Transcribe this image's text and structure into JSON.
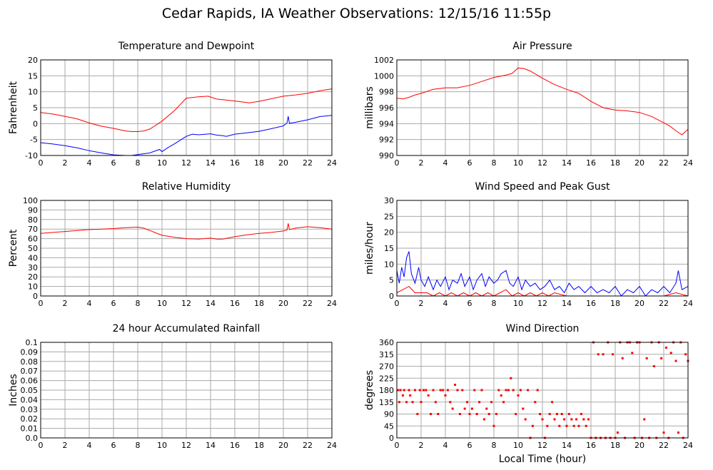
{
  "title": "Cedar Rapids, IA Weather Observations: 12/15/16 11:55p",
  "x_axis_label": "Local Time (hour)",
  "colors": {
    "primary": "#ff0000",
    "secondary": "#0000ff",
    "grid": "#aaaaaa",
    "frame": "#000000"
  },
  "chart_data": [
    {
      "id": "temp",
      "type": "line",
      "title": "Temperature and Dewpoint",
      "xlabel": "",
      "ylabel": "Fahrenheit",
      "xlim": [
        0,
        24
      ],
      "ylim": [
        -10,
        20
      ],
      "xticks": [
        0,
        2,
        4,
        6,
        8,
        10,
        12,
        14,
        16,
        18,
        20,
        22,
        24
      ],
      "yticks": [
        -10,
        -5,
        0,
        5,
        10,
        15,
        20
      ],
      "grid": true,
      "series": [
        {
          "color": "#ff0000",
          "x": [
            0,
            1,
            2,
            3,
            4,
            5,
            6,
            7,
            7.5,
            8,
            8.5,
            9,
            9.5,
            10,
            11,
            12,
            13,
            13.8,
            14.5,
            16,
            17.2,
            18,
            19,
            20,
            21,
            22,
            23,
            24
          ],
          "y": [
            3.5,
            3,
            2.3,
            1.5,
            0.2,
            -0.8,
            -1.5,
            -2.3,
            -2.5,
            -2.5,
            -2.3,
            -1.7,
            -0.5,
            0.8,
            4,
            8,
            8.4,
            8.6,
            7.7,
            7.1,
            6.5,
            7,
            7.8,
            8.6,
            9,
            9.5,
            10.3,
            10.9
          ]
        },
        {
          "color": "#0000ff",
          "x": [
            0,
            1,
            2,
            3,
            4,
            5,
            6,
            7,
            7.5,
            8,
            9,
            9.8,
            10,
            10.5,
            11,
            12,
            12.5,
            13,
            14,
            14.5,
            15,
            15.3,
            16,
            17,
            18,
            19,
            20,
            20.3,
            20.4,
            20.5,
            21,
            22,
            23,
            24
          ],
          "y": [
            -6,
            -6.4,
            -6.9,
            -7.6,
            -8.5,
            -9.2,
            -9.8,
            -10,
            -10,
            -9.7,
            -9.2,
            -8.1,
            -8.8,
            -7.5,
            -6.4,
            -4,
            -3.3,
            -3.5,
            -3.2,
            -3.6,
            -3.8,
            -4,
            -3.3,
            -2.9,
            -2.4,
            -1.6,
            -0.7,
            0.2,
            2.3,
            0.1,
            0.4,
            1.2,
            2.2,
            2.6
          ]
        }
      ]
    },
    {
      "id": "press",
      "type": "line",
      "title": "Air Pressure",
      "xlabel": "",
      "ylabel": "millibars",
      "xlim": [
        0,
        24
      ],
      "ylim": [
        990,
        1002
      ],
      "xticks": [
        0,
        2,
        4,
        6,
        8,
        10,
        12,
        14,
        16,
        18,
        20,
        22,
        24
      ],
      "yticks": [
        990,
        992,
        994,
        996,
        998,
        1000,
        1002
      ],
      "grid": true,
      "series": [
        {
          "color": "#ff0000",
          "x": [
            0,
            0.5,
            1,
            1.5,
            2,
            3,
            4,
            5,
            6,
            7,
            8,
            9,
            9.5,
            10,
            10.5,
            11,
            12,
            13,
            14,
            15,
            16,
            17,
            18,
            19,
            20,
            21,
            22,
            22.5,
            23,
            23.5,
            24
          ],
          "y": [
            997.2,
            997.1,
            997.3,
            997.6,
            997.8,
            998.3,
            998.5,
            998.5,
            998.8,
            999.3,
            999.8,
            1000.1,
            1000.3,
            1001,
            1000.9,
            1000.6,
            999.7,
            998.9,
            998.3,
            997.8,
            996.8,
            996,
            995.7,
            995.6,
            995.4,
            994.9,
            994.1,
            993.7,
            993.1,
            992.6,
            993.3
          ]
        }
      ]
    },
    {
      "id": "rh",
      "type": "line",
      "title": "Relative Humidity",
      "xlabel": "",
      "ylabel": "Percent",
      "xlim": [
        0,
        24
      ],
      "ylim": [
        0,
        100
      ],
      "xticks": [
        0,
        2,
        4,
        6,
        8,
        10,
        12,
        14,
        16,
        18,
        20,
        22,
        24
      ],
      "yticks": [
        0,
        10,
        20,
        30,
        40,
        50,
        60,
        70,
        80,
        90,
        100
      ],
      "grid": true,
      "series": [
        {
          "color": "#ff0000",
          "x": [
            0,
            1,
            2,
            3,
            4,
            5,
            6,
            7,
            8,
            8.5,
            9,
            9.5,
            10,
            11,
            12,
            13,
            14,
            14.5,
            15,
            16,
            17,
            18,
            19,
            20,
            20.3,
            20.4,
            20.5,
            21,
            22,
            23,
            24
          ],
          "y": [
            65.5,
            66.5,
            67.5,
            68.5,
            69.5,
            70,
            70.5,
            71.5,
            72,
            71,
            68.5,
            66,
            63.5,
            61.5,
            60,
            59.5,
            60.5,
            59.5,
            59.5,
            62,
            64,
            65.5,
            66.5,
            68,
            69,
            76,
            69.5,
            71,
            72.5,
            71.5,
            70
          ]
        }
      ]
    },
    {
      "id": "wind",
      "type": "line",
      "title": "Wind Speed and Peak Gust",
      "xlabel": "",
      "ylabel": "miles/hour",
      "xlim": [
        0,
        24
      ],
      "ylim": [
        0,
        30
      ],
      "xticks": [
        0,
        2,
        4,
        6,
        8,
        10,
        12,
        14,
        16,
        18,
        20,
        22,
        24
      ],
      "yticks": [
        0,
        5,
        10,
        15,
        20,
        25,
        30
      ],
      "grid": true,
      "series": [
        {
          "color": "#0000ff",
          "x": [
            0,
            0.2,
            0.4,
            0.6,
            0.8,
            1,
            1.2,
            1.5,
            1.8,
            2,
            2.3,
            2.6,
            3,
            3.3,
            3.6,
            4,
            4.3,
            4.6,
            5,
            5.3,
            5.6,
            6,
            6.3,
            6.6,
            7,
            7.3,
            7.6,
            8,
            8.3,
            8.6,
            9,
            9.3,
            9.6,
            10,
            10.3,
            10.6,
            11,
            11.4,
            11.8,
            12.2,
            12.6,
            13,
            13.4,
            13.8,
            14.2,
            14.6,
            15,
            15.5,
            16,
            16.5,
            17,
            17.5,
            18,
            18.5,
            19,
            19.5,
            20,
            20.5,
            21,
            21.5,
            22,
            22.5,
            23,
            23.2,
            23.5,
            24
          ],
          "y": [
            8,
            4,
            9,
            6,
            12,
            14,
            7,
            4,
            9,
            5,
            3,
            6,
            2,
            5,
            3,
            6,
            2,
            5,
            4,
            7,
            3,
            6,
            2,
            5,
            7,
            3,
            6,
            4,
            5,
            7,
            8,
            4,
            3,
            6,
            2,
            5,
            3,
            4,
            2,
            3,
            5,
            2,
            3,
            1,
            4,
            2,
            3,
            1,
            3,
            1,
            2,
            1,
            3,
            0,
            2,
            1,
            3,
            0,
            2,
            1,
            3,
            1,
            4,
            8,
            2,
            3
          ]
        },
        {
          "color": "#ff0000",
          "x": [
            0,
            0.5,
            1,
            1.5,
            2,
            2.5,
            3,
            3.5,
            4,
            4.5,
            5,
            5.5,
            6,
            6.5,
            7,
            7.5,
            8,
            8.5,
            9,
            9.5,
            10,
            10.5,
            11,
            11.5,
            12,
            12.5,
            13,
            14,
            15,
            16,
            17,
            18,
            19,
            20,
            21,
            22,
            23,
            24
          ],
          "y": [
            1,
            2,
            3,
            1,
            1,
            1,
            0,
            1,
            0,
            1,
            0,
            1,
            0,
            1,
            0,
            1,
            0,
            1,
            2,
            0,
            1,
            0,
            1,
            0,
            1,
            0,
            1,
            0,
            0,
            0,
            0,
            0,
            0,
            0,
            0,
            0,
            1,
            0
          ]
        }
      ]
    },
    {
      "id": "rain",
      "type": "line",
      "title": "24 hour Accumulated Rainfall",
      "xlabel": "",
      "ylabel": "Inches",
      "xlim": [
        0,
        24
      ],
      "ylim": [
        0,
        0.1
      ],
      "xticks": [
        0,
        2,
        4,
        6,
        8,
        10,
        12,
        14,
        16,
        18,
        20,
        22,
        24
      ],
      "yticks": [
        0.0,
        0.01,
        0.02,
        0.03,
        0.04,
        0.05,
        0.06,
        0.07,
        0.08,
        0.09,
        0.1
      ],
      "yticklabels": [
        "0.0",
        "0.01",
        "0.02",
        "0.03",
        "0.04",
        "0.05",
        "0.06",
        "0.07",
        "0.08",
        "0.09",
        "0.1"
      ],
      "grid": true,
      "series": [
        {
          "color": "#ff0000",
          "x": [
            0,
            24
          ],
          "y": [
            0,
            0
          ]
        }
      ]
    },
    {
      "id": "dir",
      "type": "scatter",
      "title": "Wind Direction",
      "xlabel": "Local Time (hour)",
      "ylabel": "degrees",
      "xlim": [
        0,
        24
      ],
      "ylim": [
        0,
        360
      ],
      "xticks": [
        0,
        2,
        4,
        6,
        8,
        10,
        12,
        14,
        16,
        18,
        20,
        22,
        24
      ],
      "yticks": [
        0,
        45,
        90,
        135,
        180,
        225,
        270,
        315,
        360
      ],
      "grid": true,
      "series": [
        {
          "color": "#ff0000",
          "x": [
            0.1,
            0.2,
            0.3,
            0.5,
            0.6,
            0.8,
            1.0,
            1.1,
            1.3,
            1.5,
            1.7,
            1.9,
            2.0,
            2.2,
            2.4,
            2.6,
            2.8,
            3.0,
            3.2,
            3.4,
            3.6,
            3.8,
            4.0,
            4.2,
            4.4,
            4.6,
            4.8,
            5.0,
            5.2,
            5.4,
            5.6,
            5.8,
            6.0,
            6.2,
            6.4,
            6.6,
            6.8,
            7.0,
            7.2,
            7.4,
            7.6,
            7.8,
            8.0,
            8.2,
            8.4,
            8.6,
            8.8,
            9.0,
            9.2,
            9.4,
            9.6,
            9.8,
            10.0,
            10.2,
            10.4,
            10.6,
            10.8,
            11.0,
            11.2,
            11.4,
            11.6,
            11.8,
            12.0,
            12.2,
            12.4,
            12.6,
            12.8,
            13.0,
            13.2,
            13.4,
            13.6,
            13.8,
            14.0,
            14.2,
            14.4,
            14.6,
            14.8,
            15.0,
            15.2,
            15.4,
            15.6,
            15.8,
            16.0,
            16.2,
            16.4,
            16.6,
            16.8,
            17.0,
            17.2,
            17.4,
            17.6,
            17.8,
            18.0,
            18.2,
            18.4,
            18.6,
            18.8,
            19.0,
            19.2,
            19.4,
            19.6,
            19.8,
            20.0,
            20.2,
            20.4,
            20.6,
            20.8,
            21.0,
            21.2,
            21.4,
            21.6,
            21.8,
            22.0,
            22.2,
            22.4,
            22.6,
            22.8,
            23.0,
            23.2,
            23.4,
            23.6,
            23.8,
            24.0
          ],
          "y": [
            180,
            135,
            180,
            160,
            180,
            135,
            180,
            160,
            135,
            180,
            90,
            180,
            135,
            180,
            180,
            160,
            90,
            180,
            135,
            90,
            180,
            180,
            160,
            180,
            135,
            110,
            200,
            180,
            90,
            180,
            110,
            135,
            90,
            110,
            180,
            90,
            135,
            180,
            70,
            110,
            90,
            135,
            45,
            90,
            180,
            160,
            135,
            180,
            180,
            225,
            180,
            90,
            160,
            180,
            110,
            70,
            180,
            0,
            45,
            135,
            180,
            90,
            70,
            0,
            45,
            90,
            135,
            70,
            90,
            45,
            90,
            70,
            45,
            90,
            70,
            45,
            70,
            45,
            90,
            70,
            45,
            70,
            0,
            360,
            0,
            315,
            0,
            315,
            0,
            360,
            0,
            315,
            0,
            20,
            360,
            300,
            0,
            360,
            360,
            320,
            0,
            360,
            360,
            0,
            70,
            300,
            0,
            360,
            270,
            0,
            360,
            300,
            20,
            340,
            0,
            320,
            360,
            290,
            20,
            360,
            0,
            315,
            290
          ]
        }
      ]
    }
  ]
}
